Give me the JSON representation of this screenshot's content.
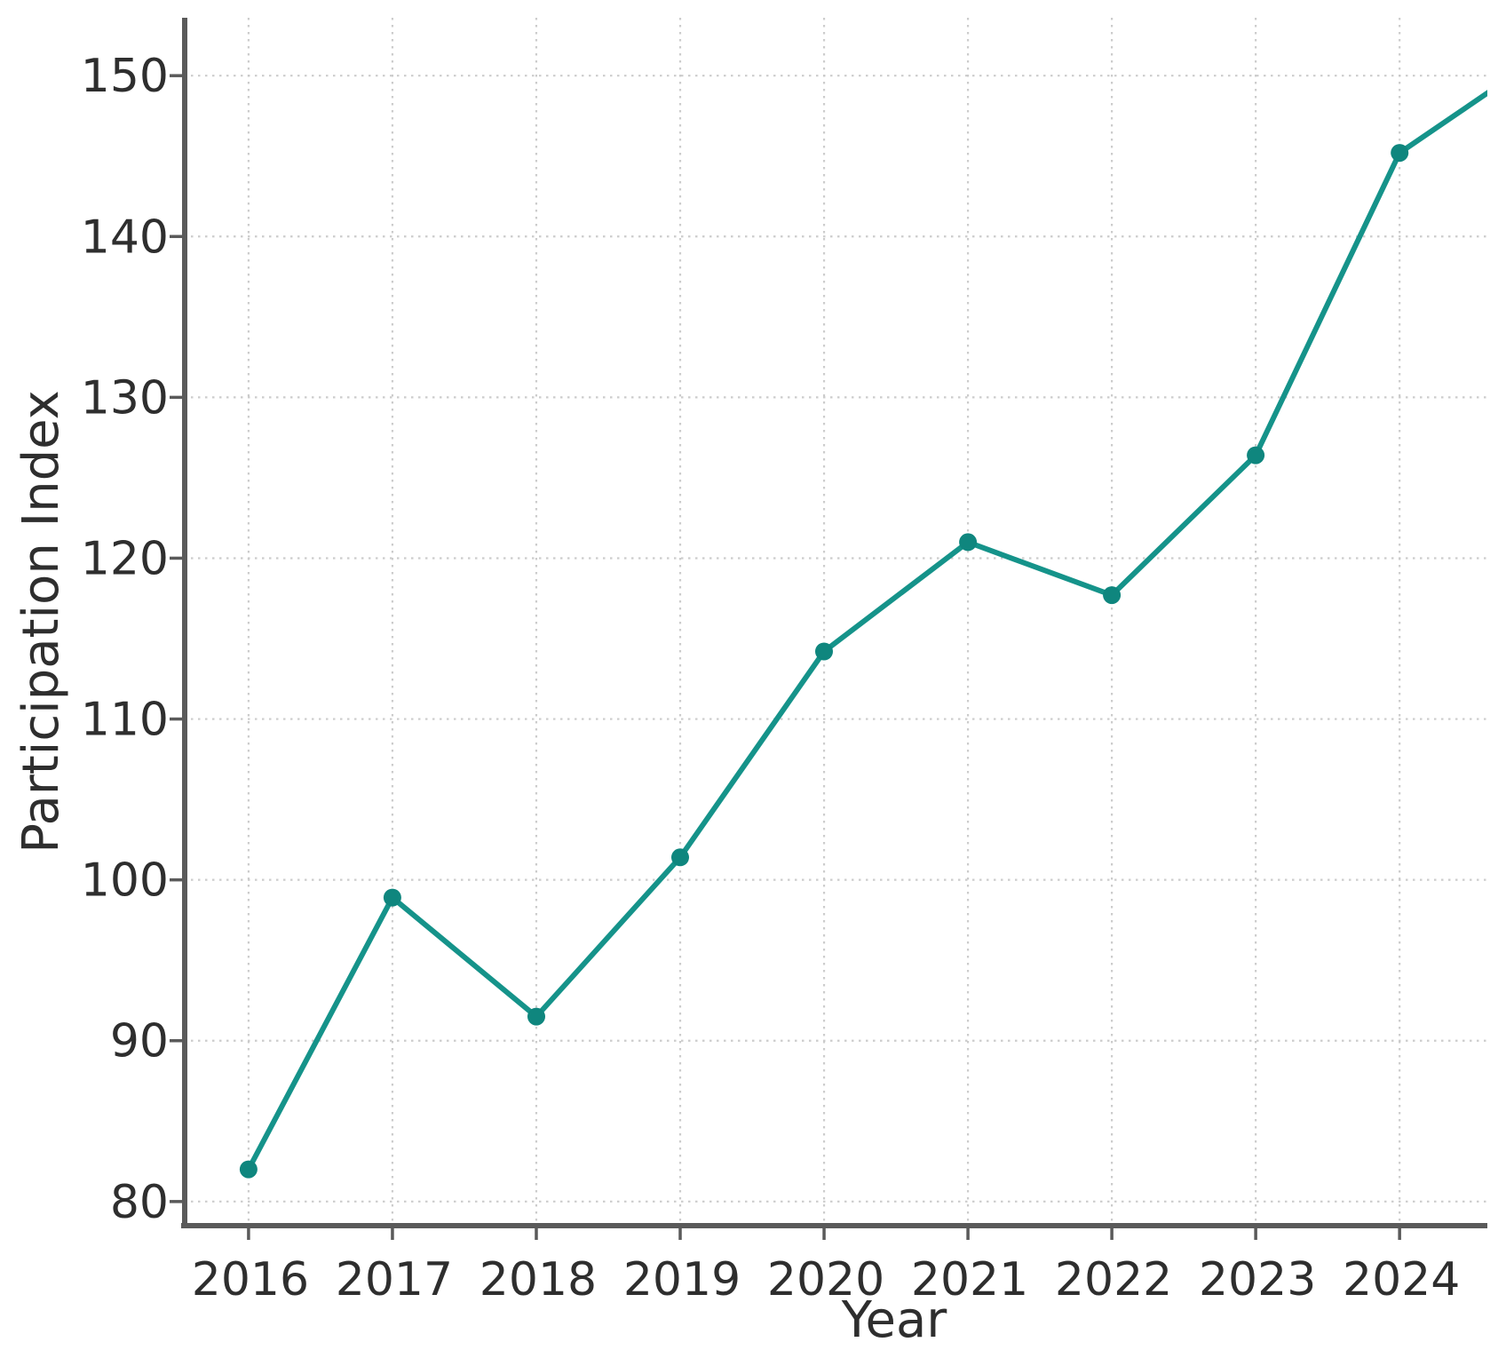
{
  "chart_data": {
    "type": "line",
    "title": "",
    "xlabel": "Year",
    "ylabel": "Participation Index",
    "series": [
      {
        "name": "Participation Index",
        "x": [
          2016,
          2017,
          2018,
          2019,
          2020,
          2021,
          2022,
          2023,
          2024
        ],
        "y": [
          82.0,
          98.9,
          91.5,
          101.4,
          114.2,
          121.0,
          117.7,
          126.4,
          145.2
        ]
      }
    ],
    "clipped_next_point": {
      "x": 2025,
      "y": 151.3
    },
    "x_tick_labels": [
      "2016",
      "2017",
      "2018",
      "2019",
      "2020",
      "2021",
      "2022",
      "2023",
      "2024"
    ],
    "y_tick_labels": [
      "80",
      "90",
      "100",
      "110",
      "120",
      "130",
      "140",
      "150"
    ],
    "x_ticks": [
      2016,
      2017,
      2018,
      2019,
      2020,
      2021,
      2022,
      2023,
      2024
    ],
    "y_ticks": [
      80,
      90,
      100,
      110,
      120,
      130,
      140,
      150
    ],
    "xlim": [
      2015.55,
      2024.61
    ],
    "ylim": [
      78.5,
      153.6
    ],
    "grid": "dotted, both axes",
    "legend": "none",
    "marker": "circle",
    "colors": {
      "line": "#15938a",
      "marker": "#0f867e",
      "spine": "#5a5a5a",
      "tick": "#5a5a5a",
      "grid": "#c9c9c9",
      "text": "#2e2e2e"
    }
  }
}
